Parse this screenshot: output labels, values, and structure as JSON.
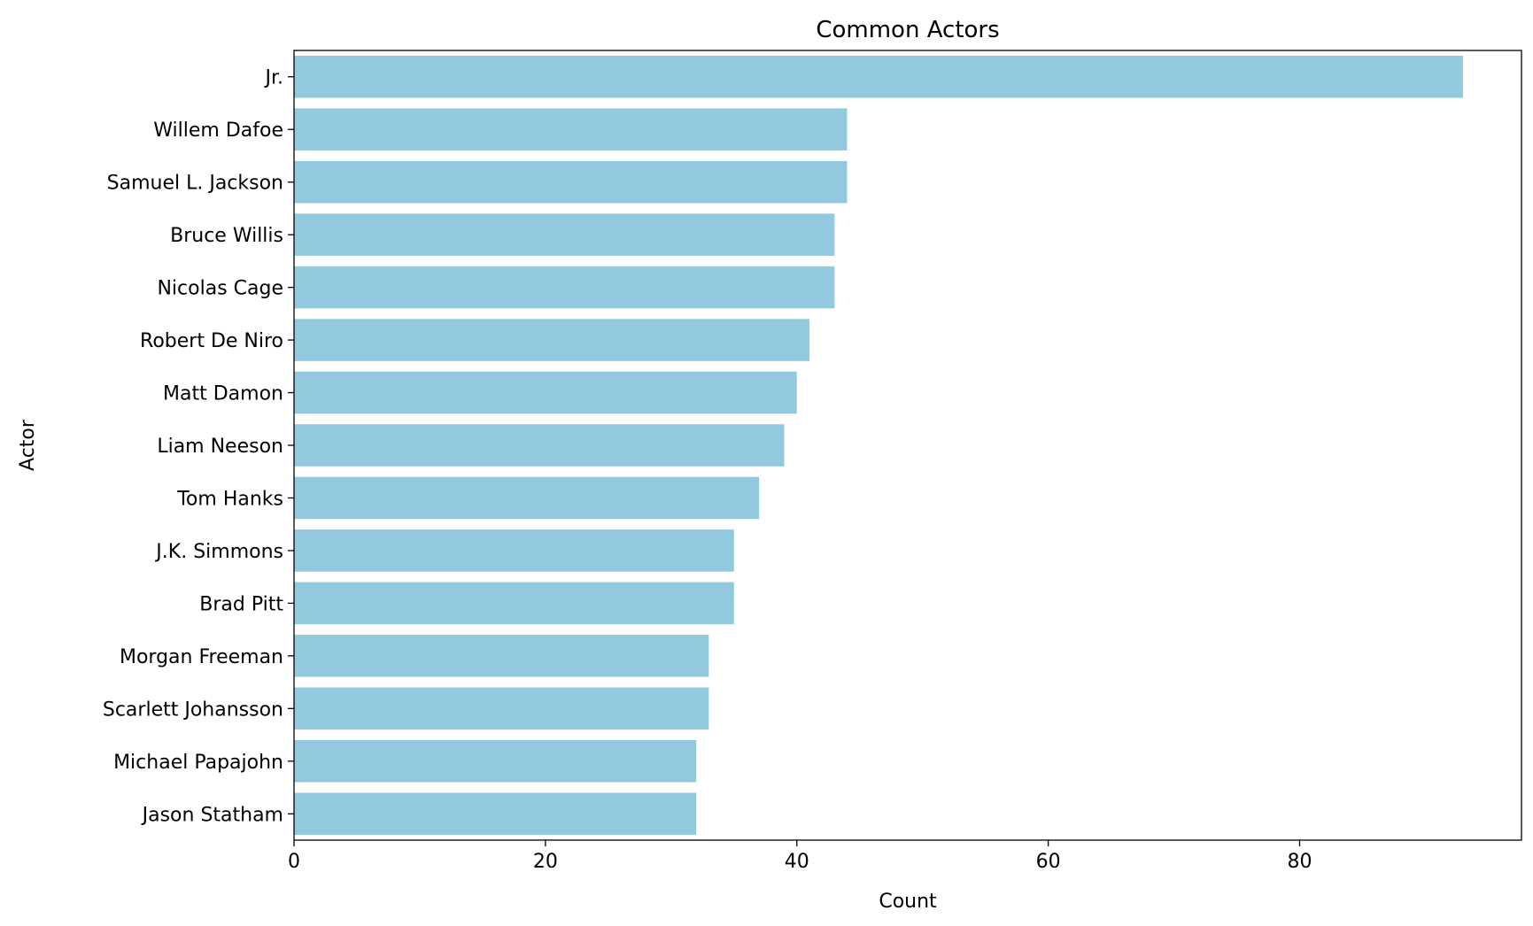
{
  "chart_data": {
    "type": "bar",
    "orientation": "horizontal",
    "title": "Common Actors",
    "xlabel": "Count",
    "ylabel": "Actor",
    "categories": [
      "Jr.",
      "Willem Dafoe",
      "Samuel L. Jackson",
      "Bruce Willis",
      "Nicolas Cage",
      "Robert De Niro",
      "Matt Damon",
      "Liam Neeson",
      "Tom Hanks",
      "J.K. Simmons",
      "Brad Pitt",
      "Morgan Freeman",
      "Scarlett Johansson",
      "Michael Papajohn",
      "Jason Statham"
    ],
    "values": [
      93,
      44,
      44,
      43,
      43,
      41,
      40,
      39,
      37,
      35,
      35,
      33,
      33,
      32,
      32
    ],
    "xlim": [
      0,
      97.65
    ],
    "xticks": [
      0,
      20,
      40,
      60,
      80
    ],
    "grid": false,
    "bar_color": "#93c9df"
  }
}
